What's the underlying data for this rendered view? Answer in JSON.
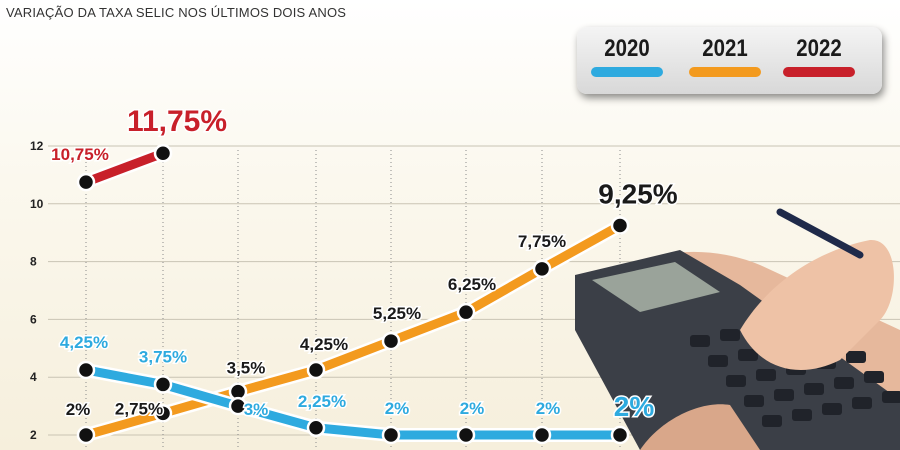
{
  "title": "VARIAÇÃO DA TAXA SELIC NOS ÚLTIMOS DOIS ANOS",
  "legend": {
    "items": [
      {
        "label": "2020",
        "color": "#2eaadf"
      },
      {
        "label": "2021",
        "color": "#f39a1e"
      },
      {
        "label": "2022",
        "color": "#c8202a"
      }
    ]
  },
  "chart_data": {
    "type": "line",
    "title": "VARIAÇÃO DA TAXA SELIC NOS ÚLTIMOS DOIS ANOS",
    "ylim": [
      1,
      12.5
    ],
    "yticks": [
      "2",
      "4",
      "6",
      "8",
      "10",
      "12"
    ],
    "grid": true,
    "legend_position": "top-right",
    "series": [
      {
        "name": "2020",
        "color": "#2eaadf",
        "values": [
          4.25,
          3.75,
          3,
          2.25,
          2,
          2,
          2,
          2
        ],
        "labels": [
          "4,25%",
          "3,75%",
          "3%",
          "2,25%",
          "2%",
          "2%",
          "2%",
          "2%"
        ]
      },
      {
        "name": "2021",
        "color": "#f39a1e",
        "values": [
          2,
          2.75,
          3.5,
          4.25,
          5.25,
          6.25,
          7.75,
          9.25
        ],
        "labels": [
          "2%",
          "2,75%",
          "3,5%",
          "4,25%",
          "5,25%",
          "6,25%",
          "7,75%",
          "9,25%"
        ]
      },
      {
        "name": "2022",
        "color": "#c8202a",
        "values": [
          10.75,
          11.75
        ],
        "labels": [
          "10,75%",
          "11,75%"
        ]
      }
    ]
  }
}
